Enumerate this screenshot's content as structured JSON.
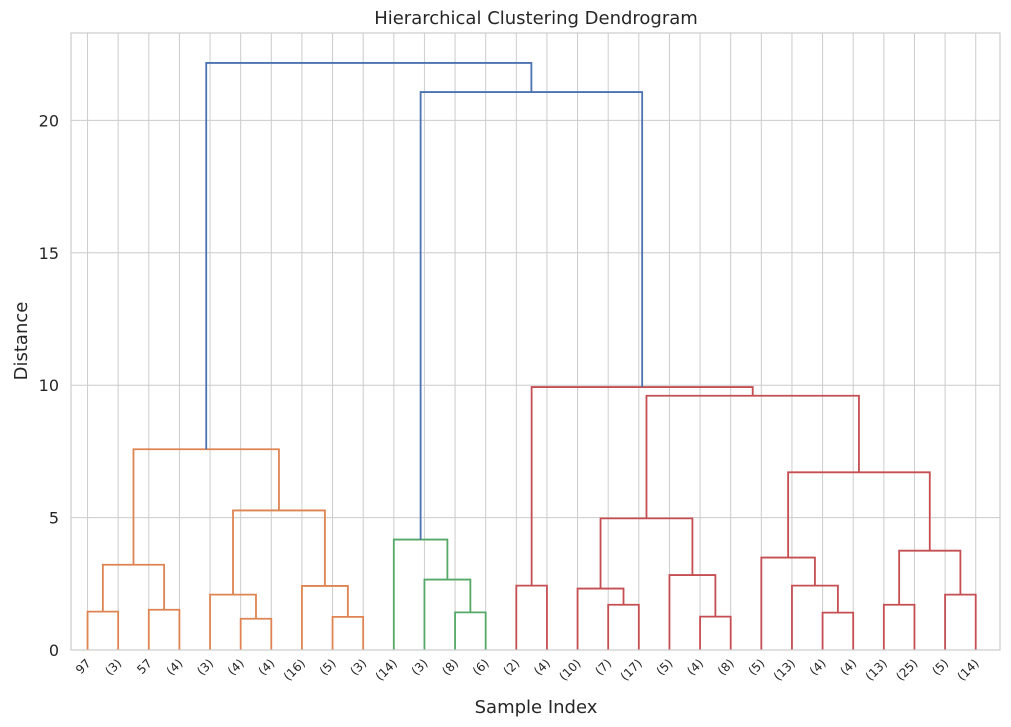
{
  "chart_data": {
    "type": "dendrogram",
    "title": "Hierarchical Clustering Dendrogram",
    "xlabel": "Sample Index",
    "ylabel": "Distance",
    "ylim": [
      0,
      23.3
    ],
    "yticks": [
      0,
      5,
      10,
      15,
      20
    ],
    "grid": true,
    "leaf_labels": [
      "97",
      "(3)",
      "57",
      "(4)",
      "(3)",
      "(4)",
      "(4)",
      "(16)",
      "(5)",
      "(3)",
      "(14)",
      "(3)",
      "(8)",
      "(6)",
      "(2)",
      "(4)",
      "(10)",
      "(7)",
      "(17)",
      "(5)",
      "(4)",
      "(8)",
      "(5)",
      "(13)",
      "(4)",
      "(4)",
      "(13)",
      "(25)",
      "(5)",
      "(14)"
    ],
    "cluster_colors": {
      "C1": "#dd8452",
      "C2": "#55a868",
      "C3": "#c44e52",
      "above": "#4c72b0"
    },
    "merges": [
      {
        "id": "o1",
        "left": 0,
        "right": 1,
        "distance": 1.45,
        "color": "C1"
      },
      {
        "id": "o2",
        "left": 2,
        "right": 3,
        "distance": 1.52,
        "color": "C1"
      },
      {
        "id": "o3",
        "left": "o1",
        "right": "o2",
        "distance": 3.22,
        "color": "C1"
      },
      {
        "id": "o4",
        "left": 5,
        "right": 6,
        "distance": 1.18,
        "color": "C1"
      },
      {
        "id": "o5",
        "left": 4,
        "right": "o4",
        "distance": 2.09,
        "color": "C1"
      },
      {
        "id": "o6",
        "left": 8,
        "right": 9,
        "distance": 1.25,
        "color": "C1"
      },
      {
        "id": "o7",
        "left": 7,
        "right": "o6",
        "distance": 2.42,
        "color": "C1"
      },
      {
        "id": "o8",
        "left": "o5",
        "right": "o7",
        "distance": 5.27,
        "color": "C1"
      },
      {
        "id": "o9",
        "left": "o3",
        "right": "o8",
        "distance": 7.58,
        "color": "C1"
      },
      {
        "id": "g1",
        "left": 12,
        "right": 13,
        "distance": 1.42,
        "color": "C2"
      },
      {
        "id": "g2",
        "left": 11,
        "right": "g1",
        "distance": 2.66,
        "color": "C2"
      },
      {
        "id": "g3",
        "left": 10,
        "right": "g2",
        "distance": 4.17,
        "color": "C2"
      },
      {
        "id": "r1",
        "left": 14,
        "right": 15,
        "distance": 2.43,
        "color": "C3"
      },
      {
        "id": "r2",
        "left": 17,
        "right": 18,
        "distance": 1.71,
        "color": "C3"
      },
      {
        "id": "r3",
        "left": 16,
        "right": "r2",
        "distance": 2.32,
        "color": "C3"
      },
      {
        "id": "r4",
        "left": 20,
        "right": 21,
        "distance": 1.26,
        "color": "C3"
      },
      {
        "id": "r5",
        "left": 19,
        "right": "r4",
        "distance": 2.83,
        "color": "C3"
      },
      {
        "id": "r6",
        "left": "r3",
        "right": "r5",
        "distance": 4.97,
        "color": "C3"
      },
      {
        "id": "r7",
        "left": 24,
        "right": 25,
        "distance": 1.41,
        "color": "C3"
      },
      {
        "id": "r8",
        "left": 23,
        "right": "r7",
        "distance": 2.43,
        "color": "C3"
      },
      {
        "id": "r9",
        "left": 22,
        "right": "r8",
        "distance": 3.49,
        "color": "C3"
      },
      {
        "id": "r10",
        "left": 26,
        "right": 27,
        "distance": 1.71,
        "color": "C3"
      },
      {
        "id": "r11",
        "left": 28,
        "right": 29,
        "distance": 2.09,
        "color": "C3"
      },
      {
        "id": "r12",
        "left": "r10",
        "right": "r11",
        "distance": 3.75,
        "color": "C3"
      },
      {
        "id": "r13",
        "left": "r9",
        "right": "r12",
        "distance": 6.71,
        "color": "C3"
      },
      {
        "id": "r14",
        "left": "r6",
        "right": "r13",
        "distance": 9.6,
        "color": "C3"
      },
      {
        "id": "r15",
        "left": "r1",
        "right": "r14",
        "distance": 9.93,
        "color": "C3"
      },
      {
        "id": "b1",
        "left": "g3",
        "right": "r15",
        "distance": 21.07,
        "color": "above"
      },
      {
        "id": "b2",
        "left": "o9",
        "right": "b1",
        "distance": 22.17,
        "color": "above"
      }
    ]
  }
}
